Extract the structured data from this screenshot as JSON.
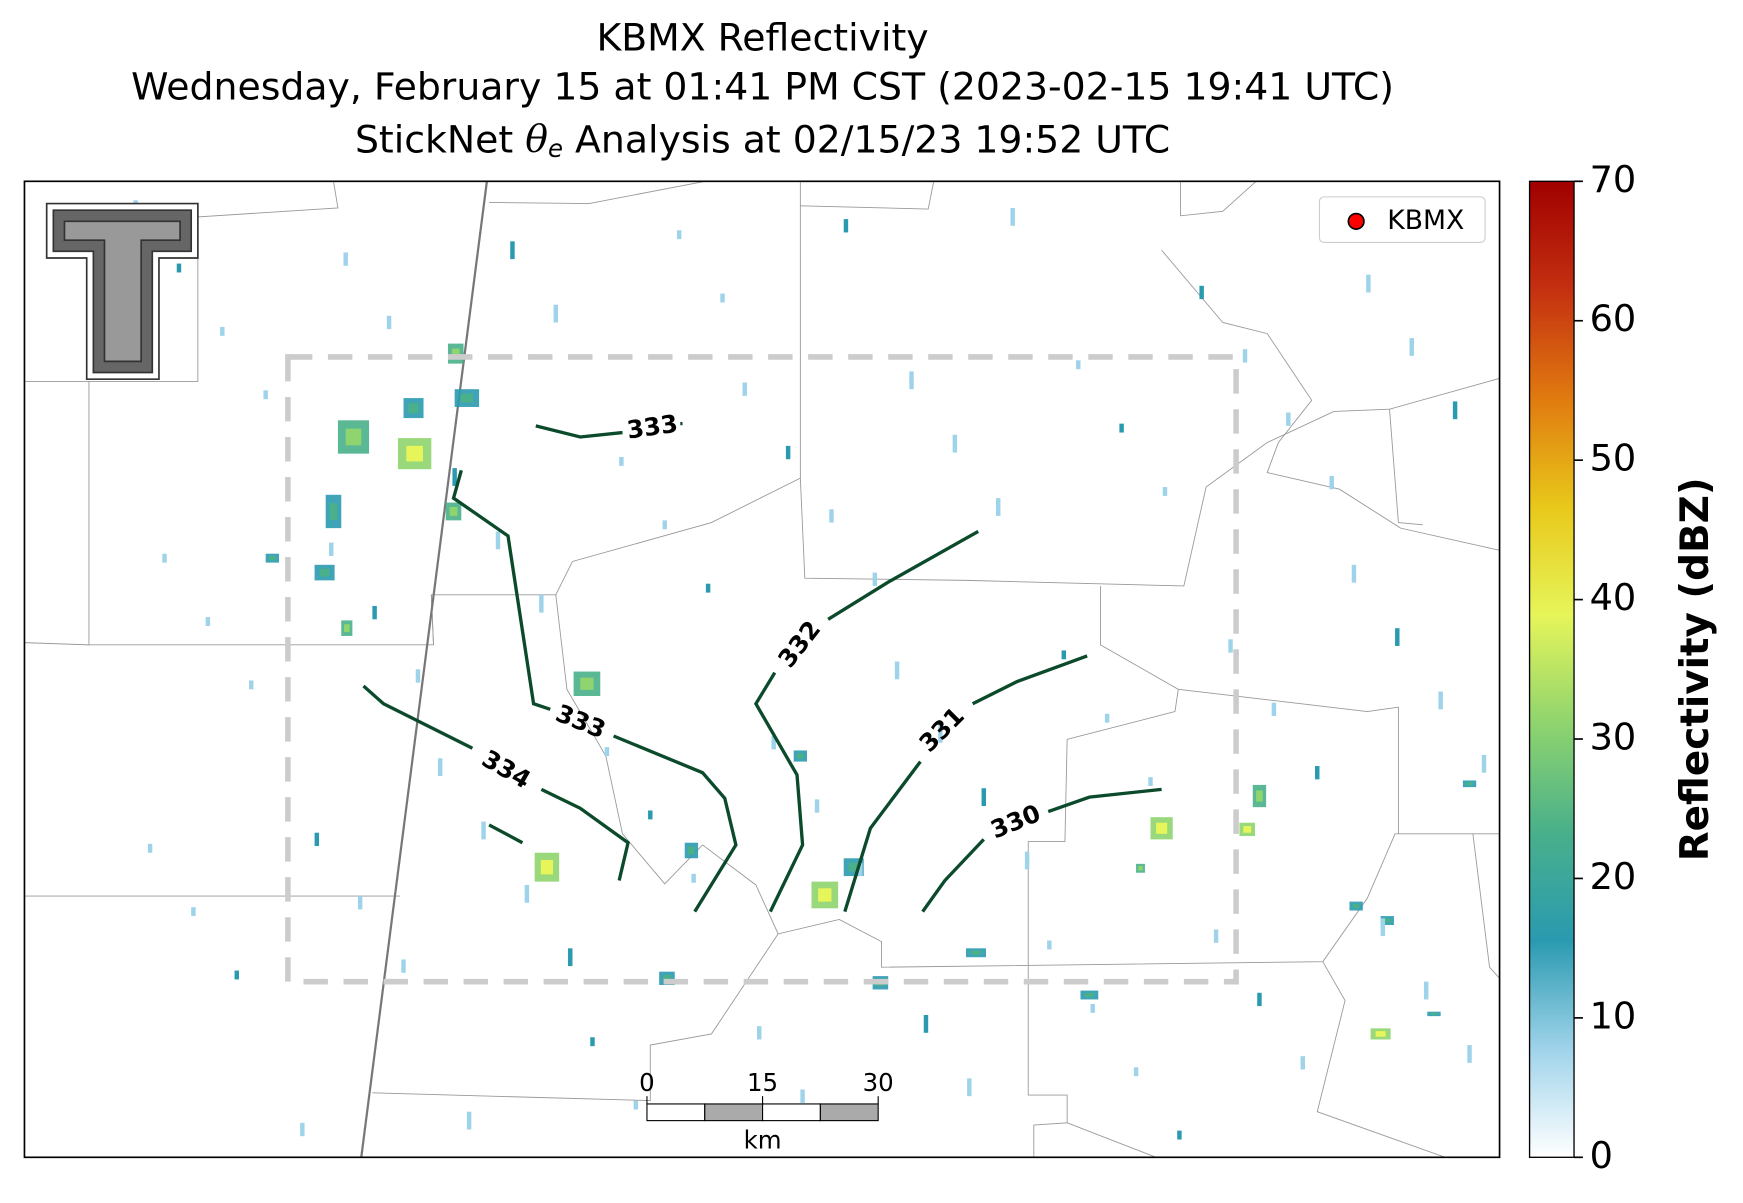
{
  "map": {
    "title": "KBMX Reflectivity",
    "subtitle": "Wednesday, February 15 at 01:41 PM CST (2023-02-15 19:41 UTC)",
    "analysis": {
      "before": "StickNet ",
      "symbol": "θ",
      "subscript": "e",
      "after": " Analysis at 02/15/23 19:52 UTC"
    },
    "legend": {
      "label": "KBMX",
      "color": "#ff0000"
    },
    "contours": [
      {
        "level": 333,
        "color": "#0b4a2a"
      },
      {
        "level": 333,
        "color": "#0b4a2a"
      },
      {
        "level": 334,
        "color": "#0b4a2a"
      },
      {
        "level": 332,
        "color": "#0b4a2a"
      },
      {
        "level": 331,
        "color": "#0b4a2a"
      },
      {
        "level": 330,
        "color": "#0b4a2a"
      }
    ],
    "scalebar": {
      "ticks": [
        0,
        15,
        30
      ],
      "unit": "km"
    },
    "colorbar": {
      "label": "Reflectivity (dBZ)",
      "lim": [
        0,
        70
      ],
      "ticks": [
        0,
        10,
        20,
        30,
        40,
        50,
        60,
        70
      ],
      "colormap": [
        "#ffffff",
        "#9fd3ea",
        "#2a9ab0",
        "#49b08a",
        "#8fd46e",
        "#e6f55a",
        "#e8c81a",
        "#e07a10",
        "#c43010",
        "#a00000"
      ]
    }
  }
}
